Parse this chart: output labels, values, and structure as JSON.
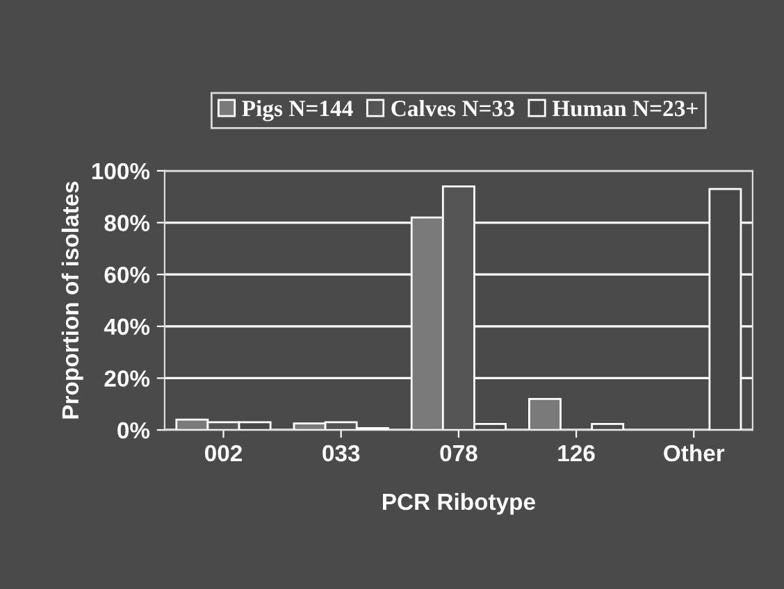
{
  "chart_data": {
    "type": "bar",
    "xlabel": "PCR Ribotype",
    "ylabel": "Proportion of isolates",
    "categories": [
      "002",
      "033",
      "078",
      "126",
      "Other"
    ],
    "series": [
      {
        "name": "Pigs N=144",
        "color": "#7a7a7a",
        "values": [
          4,
          2.5,
          82,
          12,
          null
        ]
      },
      {
        "name": "Calves N=33",
        "color": "#555555",
        "values": [
          3,
          3,
          94,
          null,
          null
        ]
      },
      {
        "name": "Human N=23+",
        "color": "#474747",
        "values": [
          3,
          0.7,
          2.3,
          2.3,
          93
        ]
      }
    ],
    "ylim": [
      0,
      100
    ],
    "yticks": [
      {
        "value": 0,
        "label": "0%"
      },
      {
        "value": 20,
        "label": "20%"
      },
      {
        "value": 40,
        "label": "40%"
      },
      {
        "value": 60,
        "label": "60%"
      },
      {
        "value": 80,
        "label": "80%"
      },
      {
        "value": 100,
        "label": "100%"
      }
    ],
    "grid": "y",
    "legend": "top"
  }
}
